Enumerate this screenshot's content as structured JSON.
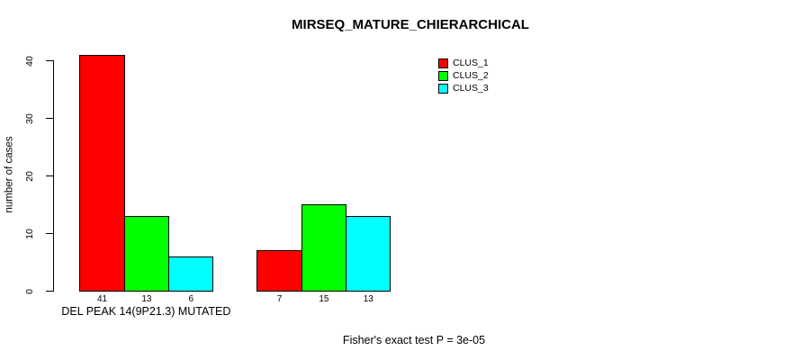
{
  "chart_data": {
    "type": "bar",
    "title": "MIRSEQ_MATURE_CHIERARCHICAL",
    "xlabel": "",
    "ylabel": "number of cases",
    "ylim": [
      0,
      41
    ],
    "yticks": [
      0,
      10,
      20,
      30,
      40
    ],
    "grid": false,
    "legend_position": "top-right",
    "categories": [
      "DEL PEAK 14(9P21.3) MUTATED",
      ""
    ],
    "series": [
      {
        "name": "CLUS_1",
        "color": "#ff0000",
        "values": [
          41,
          7
        ]
      },
      {
        "name": "CLUS_2",
        "color": "#00ff00",
        "values": [
          13,
          15
        ]
      },
      {
        "name": "CLUS_3",
        "color": "#00ffff",
        "values": [
          6,
          13
        ]
      }
    ],
    "bar_value_labels": [
      [
        41,
        13,
        6
      ],
      [
        7,
        15,
        13
      ]
    ],
    "annotation": "Fisher's exact test P = 3e-05",
    "bar_border_color": "#000000",
    "text_color": "#000000",
    "background": "#ffffff"
  }
}
